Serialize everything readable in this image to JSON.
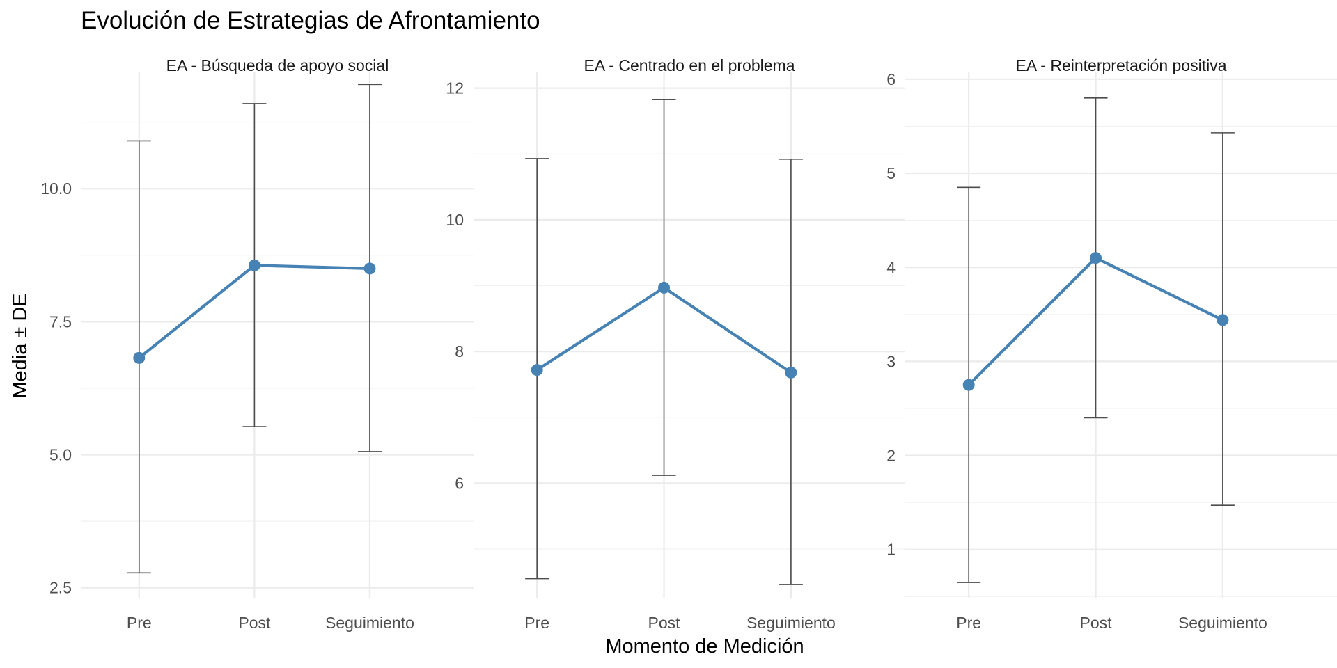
{
  "chart_data": {
    "type": "line",
    "title": "Evolución de Estrategias de Afrontamiento",
    "xlabel": "Momento de Medición",
    "ylabel": "Media ± DE",
    "grid": true,
    "legend": "none",
    "line_color": "#4682B4",
    "errorbar_color": "#4D4D4D",
    "categories": [
      "Pre",
      "Post",
      "Seguimiento"
    ],
    "panels": [
      {
        "strip": "EA - Búsqueda de apoyo social",
        "ylim": [
          2.3,
          12.2
        ],
        "y_ticks": [
          2.5,
          5.0,
          7.5,
          10.0
        ],
        "y_tick_labels": [
          "2.5",
          "5.0",
          "7.5",
          "10.0"
        ],
        "mean": [
          6.82,
          8.56,
          8.5
        ],
        "lower": [
          2.78,
          5.53,
          5.06
        ],
        "upper": [
          10.9,
          11.6,
          11.96
        ]
      },
      {
        "strip": "EA - Centrado en el problema",
        "ylim": [
          4.25,
          12.25
        ],
        "y_ticks": [
          6,
          8,
          10,
          12
        ],
        "y_tick_labels": [
          "6",
          "8",
          "10",
          "12"
        ],
        "mean": [
          7.72,
          8.97,
          7.68
        ],
        "lower": [
          4.55,
          6.12,
          4.46
        ],
        "upper": [
          10.93,
          11.83,
          10.92
        ]
      },
      {
        "strip": "EA - Reinterpretación positiva",
        "ylim": [
          0.48,
          6.08
        ],
        "y_ticks": [
          1,
          2,
          3,
          4,
          5,
          6
        ],
        "y_tick_labels": [
          "1",
          "2",
          "3",
          "4",
          "5",
          "6"
        ],
        "mean": [
          2.75,
          4.1,
          3.44
        ],
        "lower": [
          0.65,
          2.4,
          1.47
        ],
        "upper": [
          4.85,
          5.8,
          5.43
        ]
      }
    ]
  }
}
